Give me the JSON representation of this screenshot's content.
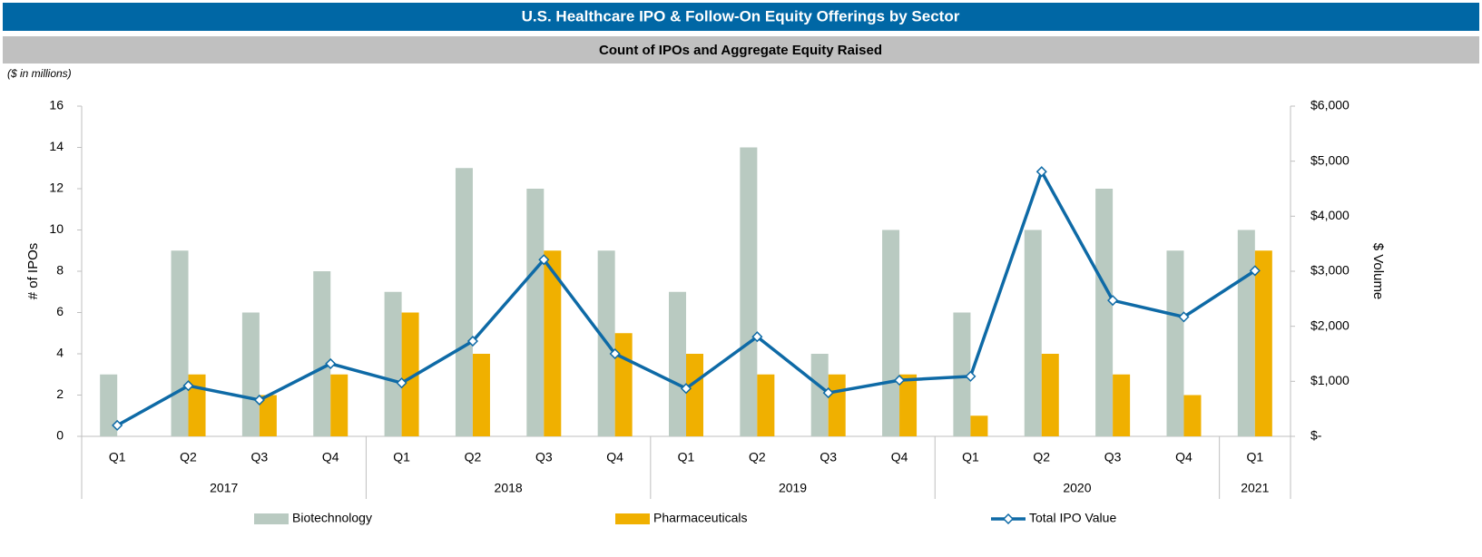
{
  "header": {
    "title": "U.S. Healthcare IPO & Follow-On Equity Offerings by Sector",
    "subtitle": "Count of IPOs and Aggregate Equity Raised",
    "note": "($ in millions)"
  },
  "chart_data": {
    "type": "bar-line",
    "categories": [
      "Q1",
      "Q2",
      "Q3",
      "Q4",
      "Q1",
      "Q2",
      "Q3",
      "Q4",
      "Q1",
      "Q2",
      "Q3",
      "Q4",
      "Q1",
      "Q2",
      "Q3",
      "Q4",
      "Q1"
    ],
    "year_groups": [
      {
        "label": "2017",
        "size": 4
      },
      {
        "label": "2018",
        "size": 4
      },
      {
        "label": "2019",
        "size": 4
      },
      {
        "label": "2020",
        "size": 4
      },
      {
        "label": "2021",
        "size": 1
      }
    ],
    "series": [
      {
        "name": "Biotechnology",
        "type": "bar",
        "color": "#b9cac1",
        "values": [
          3,
          9,
          6,
          8,
          7,
          13,
          12,
          9,
          7,
          14,
          4,
          10,
          6,
          10,
          12,
          9,
          10
        ]
      },
      {
        "name": "Pharmaceuticals",
        "type": "bar",
        "color": "#f0b000",
        "values": [
          0,
          3,
          2,
          3,
          6,
          4,
          9,
          5,
          4,
          3,
          3,
          3,
          1,
          4,
          3,
          2,
          9
        ]
      },
      {
        "name": "Total IPO Value",
        "type": "line",
        "axis": "y2",
        "color": "#0e6aa6",
        "values": [
          200,
          920,
          660,
          1320,
          970,
          1730,
          3210,
          1500,
          870,
          1810,
          790,
          1020,
          1090,
          4810,
          2470,
          2170,
          3010
        ]
      }
    ],
    "ylabel": "# of IPOs",
    "y2label": "$ Volume",
    "ylim": [
      0,
      16
    ],
    "yticks": [
      0,
      2,
      4,
      6,
      8,
      10,
      12,
      14,
      16
    ],
    "y2lim": [
      0,
      6000
    ],
    "y2ticks": [
      {
        "value": 0,
        "label": "$-"
      },
      {
        "value": 1000,
        "label": "$1,000"
      },
      {
        "value": 2000,
        "label": "$2,000"
      },
      {
        "value": 3000,
        "label": "$3,000"
      },
      {
        "value": 4000,
        "label": "$4,000"
      },
      {
        "value": 5000,
        "label": "$5,000"
      },
      {
        "value": 6000,
        "label": "$6,000"
      }
    ],
    "legend": "bottom"
  }
}
